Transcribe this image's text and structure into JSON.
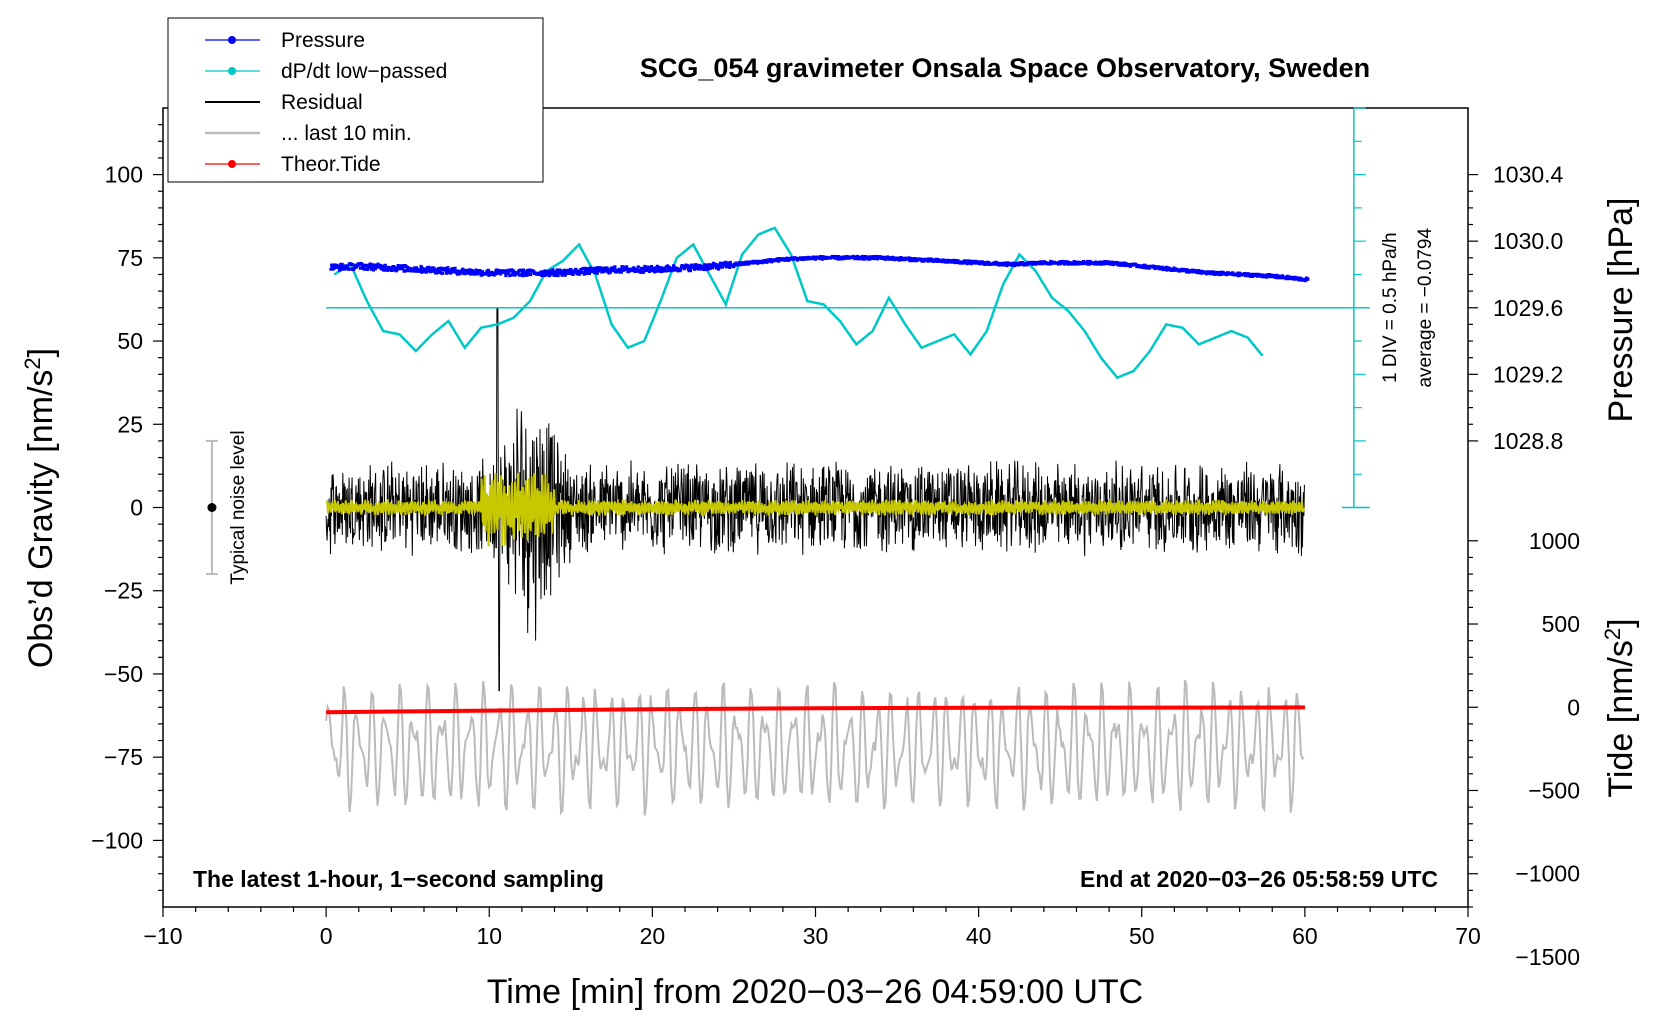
{
  "chart_data": {
    "type": "line",
    "title": "SCG_054 gravimeter Onsala Space Observatory, Sweden",
    "xlabel": "Time [min] from 2020−03−26 04:59:00 UTC",
    "ylabel_left_prefix": "Obs’d Gravity [nm/s",
    "ylabel_left_sup": "2",
    "ylabel_left_suffix": "]",
    "ylabel_right_pressure": "Pressure [hPa]",
    "ylabel_right_tide_prefix": "Tide [nm/s",
    "ylabel_right_tide_sup": "2",
    "ylabel_right_tide_suffix": "]",
    "xlim": [
      -10,
      70
    ],
    "ylim": [
      -120,
      120
    ],
    "x_ticks": [
      -10,
      0,
      10,
      20,
      30,
      40,
      50,
      60,
      70
    ],
    "x_tick_labels": [
      "−10",
      "0",
      "10",
      "20",
      "30",
      "40",
      "50",
      "60",
      "70"
    ],
    "y_ticks": [
      100,
      75,
      50,
      25,
      0,
      -25,
      -50,
      -75,
      -100
    ],
    "y_tick_labels": [
      "100",
      "75",
      "50",
      "25",
      "0",
      "−25",
      "−50",
      "−75",
      "−100"
    ],
    "pressure_axis": {
      "ticks": [
        1030.4,
        1030.0,
        1029.6,
        1029.2,
        1028.8
      ],
      "tick_labels": [
        "1030.4",
        "1030.0",
        "1029.6",
        "1029.2",
        "1028.8"
      ],
      "ref_value": 1029.6,
      "ref_gravity": 60,
      "nm_per_hpa": 50
    },
    "tide_axis": {
      "ticks": [
        1000,
        500,
        0,
        -500,
        -1000,
        -1500
      ],
      "tick_labels": [
        "1000",
        "500",
        "0",
        "−500",
        "−1000",
        "−1500"
      ],
      "ref_value": 0,
      "ref_gravity": -60,
      "nm_per_unit": 0.05
    },
    "footer_left": "The latest 1-hour, 1−second sampling",
    "footer_right": "End at 2020−03−26 05:58:59 UTC",
    "noise_level": {
      "label": "Typical noise level",
      "x": -7,
      "center": 0,
      "half_range": 20
    },
    "dpdt_scale": {
      "x": 63,
      "range": [
        0,
        120
      ],
      "div_label": "1 DIV = 0.5 hPa/h",
      "average_label": "average = −0.0794",
      "ref_line": 60
    },
    "legend": [
      {
        "label": "Pressure",
        "color": "#0000ff",
        "marker": true
      },
      {
        "label": "dP/dt low−passed",
        "color": "#00c8c8",
        "marker": true
      },
      {
        "label": "Residual",
        "color": "#000000",
        "marker": false
      },
      {
        "label": "... last 10 min.",
        "color": "#bbbbbb",
        "marker": false
      },
      {
        "label": "Theor.Tide",
        "color": "#ff0000",
        "marker": true
      }
    ],
    "colors": {
      "pressure": "#0000ff",
      "dpdt": "#00c8c8",
      "residual": "#000000",
      "residual_smooth": "#c8c800",
      "last10": "#bbbbbb",
      "tide": "#ff0000"
    },
    "series": [
      {
        "name": "Pressure",
        "unit": "hPa",
        "x": [
          0,
          2,
          4,
          6,
          8,
          10,
          12,
          14,
          16,
          18,
          20,
          22,
          24,
          26,
          28,
          30,
          32,
          34,
          36,
          38,
          40,
          42,
          44,
          46,
          48,
          50,
          52,
          54,
          56,
          58,
          60
        ],
        "values": [
          1029.84,
          1029.85,
          1029.84,
          1029.83,
          1029.82,
          1029.81,
          1029.81,
          1029.81,
          1029.82,
          1029.83,
          1029.83,
          1029.84,
          1029.85,
          1029.87,
          1029.89,
          1029.9,
          1029.9,
          1029.9,
          1029.89,
          1029.88,
          1029.87,
          1029.86,
          1029.87,
          1029.87,
          1029.87,
          1029.85,
          1029.83,
          1029.81,
          1029.8,
          1029.79,
          1029.77
        ]
      },
      {
        "name": "dP/dt low−passed",
        "unit": "nm/s2 (display)",
        "x": [
          0.5,
          1.5,
          2.5,
          3.5,
          4.5,
          5.5,
          6.5,
          7.5,
          8.5,
          9.5,
          10.5,
          11.5,
          12.5,
          13.5,
          14.5,
          15.5,
          16.5,
          17.5,
          18.5,
          19.5,
          20.5,
          21.5,
          22.5,
          23.5,
          24.5,
          25.5,
          26.5,
          27.5,
          28.5,
          29.5,
          30.5,
          31.5,
          32.5,
          33.5,
          34.5,
          35.5,
          36.5,
          37.5,
          38.5,
          39.5,
          40.5,
          41.5,
          42.5,
          43.5,
          44.5,
          45.5,
          46.5,
          47.5,
          48.5,
          49.5,
          50.5,
          51.5,
          52.5,
          53.5,
          54.5,
          55.5,
          56.5,
          57.5
        ],
        "values": [
          70,
          73,
          62,
          53,
          52,
          47,
          52,
          56,
          48,
          54,
          55,
          57,
          62,
          71,
          74,
          79,
          70,
          55,
          48,
          50,
          62,
          75,
          79,
          70,
          61,
          76,
          82,
          84,
          76,
          62,
          61,
          56,
          49,
          53,
          63,
          55,
          48,
          50,
          52,
          46,
          53,
          67,
          76,
          71,
          63,
          59,
          53,
          45,
          39,
          41,
          47,
          55,
          54,
          49,
          51,
          53,
          51,
          45
        ]
      },
      {
        "name": "Residual",
        "unit": "nm/s2",
        "x_range": [
          0,
          60
        ],
        "typical_amplitude": 15,
        "event_window": [
          10,
          15
        ],
        "event_peak_max": 60,
        "event_peak_min": -55
      },
      {
        "name": "... last 10 min.",
        "unit": "nm/s2 (display)",
        "x_range": [
          0,
          60
        ],
        "center": -72,
        "amplitude": 15
      },
      {
        "name": "Theor.Tide",
        "unit": "nm/s2",
        "x": [
          0,
          10,
          20,
          30,
          40,
          50,
          60
        ],
        "values": [
          -30,
          -20,
          -12,
          -6,
          -3,
          -2,
          -1
        ]
      }
    ]
  }
}
